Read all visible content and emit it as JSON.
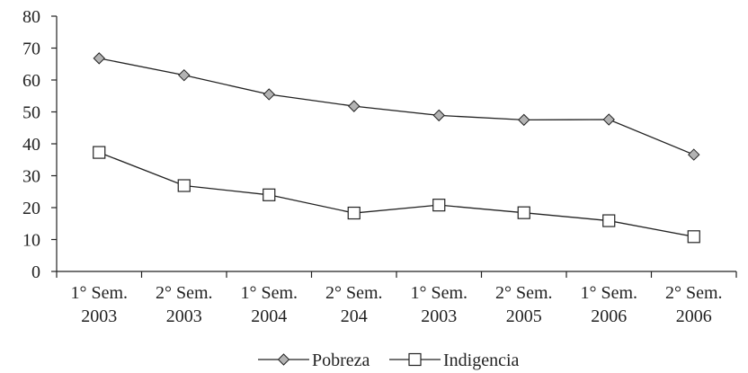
{
  "chart_data": {
    "type": "line",
    "title": "",
    "xlabel": "",
    "ylabel": "",
    "categories": [
      [
        "1° Sem.",
        "2003"
      ],
      [
        "2° Sem.",
        "2003"
      ],
      [
        "1° Sem.",
        "2004"
      ],
      [
        "2° Sem.",
        "204"
      ],
      [
        "1° Sem.",
        "2003"
      ],
      [
        "2° Sem.",
        "2005"
      ],
      [
        "1° Sem.",
        "2006"
      ],
      [
        "2° Sem.",
        "2006"
      ]
    ],
    "ylim": [
      0,
      80
    ],
    "yticks": [
      0,
      10,
      20,
      30,
      40,
      50,
      60,
      70,
      80
    ],
    "grid": false,
    "legend_position": "bottom-center",
    "series": [
      {
        "name": "Pobreza",
        "marker": "diamond",
        "marker_fill": "#b3b3b3",
        "values": [
          66.8,
          61.5,
          55.5,
          51.8,
          48.9,
          47.5,
          47.6,
          36.6
        ]
      },
      {
        "name": "Indigencia",
        "marker": "square",
        "marker_fill": "#ffffff",
        "values": [
          37.3,
          26.9,
          24.0,
          18.3,
          20.8,
          18.4,
          15.9,
          10.9
        ]
      }
    ],
    "line_color": "#222222"
  }
}
